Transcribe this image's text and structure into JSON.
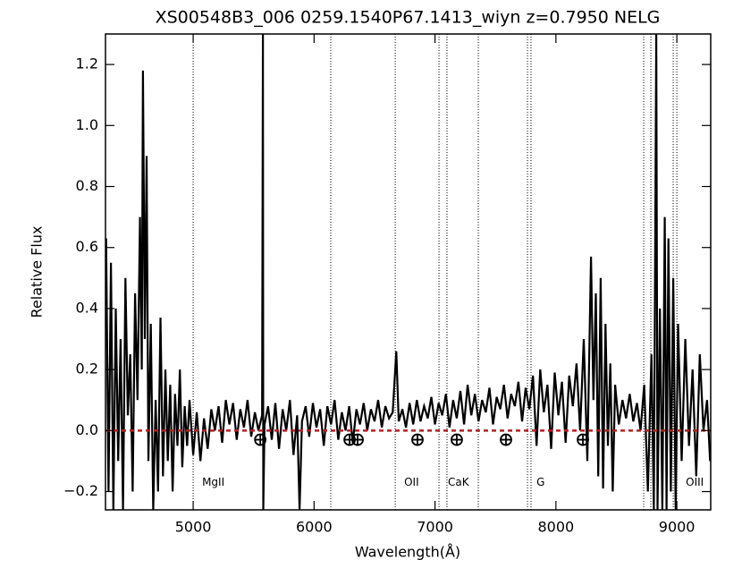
{
  "chart_data": {
    "type": "line",
    "title": "XS00548B3_006  0259.1540P67.1413_wiyn  z=0.7950   NELG",
    "x_label": "Wavelength(Å)",
    "y_label": "Relative Flux",
    "color": "#000000",
    "x": [
      4280,
      4300,
      4320,
      4340,
      4360,
      4380,
      4400,
      4420,
      4440,
      4460,
      4480,
      4500,
      4520,
      4540,
      4560,
      4575,
      4585,
      4600,
      4615,
      4630,
      4650,
      4670,
      4690,
      4710,
      4730,
      4750,
      4770,
      4790,
      4810,
      4830,
      4850,
      4870,
      4890,
      4910,
      4930,
      4950,
      4970,
      5000,
      5030,
      5060,
      5090,
      5120,
      5150,
      5180,
      5210,
      5240,
      5270,
      5300,
      5330,
      5360,
      5390,
      5420,
      5450,
      5480,
      5510,
      5540,
      5570,
      5577,
      5580,
      5590,
      5620,
      5650,
      5680,
      5710,
      5740,
      5770,
      5800,
      5830,
      5860,
      5880,
      5900,
      5930,
      5960,
      5990,
      6020,
      6050,
      6080,
      6110,
      6140,
      6170,
      6200,
      6230,
      6260,
      6290,
      6320,
      6350,
      6380,
      6410,
      6440,
      6470,
      6500,
      6530,
      6560,
      6590,
      6620,
      6650,
      6680,
      6700,
      6730,
      6760,
      6790,
      6820,
      6850,
      6880,
      6910,
      6940,
      6970,
      7000,
      7030,
      7060,
      7090,
      7120,
      7150,
      7180,
      7210,
      7240,
      7270,
      7300,
      7330,
      7360,
      7390,
      7420,
      7450,
      7480,
      7510,
      7540,
      7570,
      7600,
      7630,
      7660,
      7690,
      7720,
      7750,
      7780,
      7810,
      7840,
      7870,
      7900,
      7930,
      7960,
      7990,
      8020,
      8050,
      8080,
      8110,
      8140,
      8170,
      8200,
      8230,
      8260,
      8290,
      8310,
      8330,
      8350,
      8370,
      8390,
      8410,
      8430,
      8450,
      8470,
      8490,
      8520,
      8550,
      8580,
      8610,
      8640,
      8670,
      8700,
      8730,
      8760,
      8790,
      8810,
      8830,
      8840,
      8860,
      8880,
      8900,
      8915,
      8930,
      8950,
      8970,
      8990,
      9010,
      9040,
      9070,
      9100,
      9130,
      9160,
      9190,
      9220,
      9250,
      9275
    ],
    "values": [
      0.63,
      -0.2,
      0.55,
      -0.26,
      0.4,
      -0.1,
      0.3,
      -0.26,
      0.5,
      0.05,
      0.25,
      -0.2,
      0.45,
      0.1,
      0.7,
      0.2,
      1.18,
      0.3,
      0.9,
      -0.1,
      0.35,
      -0.26,
      0.1,
      -0.2,
      0.37,
      -0.15,
      0.2,
      -0.1,
      0.15,
      -0.2,
      0.12,
      -0.05,
      0.2,
      -0.12,
      0.08,
      -0.05,
      0.1,
      -0.08,
      0.06,
      -0.1,
      0.04,
      -0.06,
      0.07,
      0.0,
      0.08,
      -0.04,
      0.1,
      0.02,
      0.09,
      -0.03,
      0.07,
      0.01,
      0.1,
      -0.02,
      0.06,
      0.0,
      0.05,
      1.3,
      -0.26,
      0.02,
      0.08,
      -0.03,
      0.09,
      -0.06,
      0.07,
      0.0,
      0.1,
      -0.08,
      0.05,
      -0.26,
      0.03,
      0.08,
      -0.02,
      0.09,
      0.01,
      0.07,
      -0.05,
      0.08,
      0.02,
      0.1,
      -0.03,
      0.06,
      0.0,
      0.08,
      -0.04,
      0.07,
      0.02,
      0.09,
      0.0,
      0.07,
      0.03,
      0.1,
      0.01,
      0.08,
      0.04,
      0.06,
      0.26,
      0.03,
      0.07,
      0.01,
      0.09,
      0.02,
      0.1,
      0.03,
      0.08,
      0.04,
      0.11,
      0.02,
      0.09,
      0.05,
      0.12,
      0.01,
      0.1,
      0.04,
      0.13,
      0.02,
      0.15,
      0.05,
      0.12,
      0.03,
      0.1,
      0.06,
      0.14,
      0.02,
      0.11,
      0.07,
      0.15,
      0.04,
      0.12,
      0.08,
      0.16,
      0.03,
      0.14,
      0.07,
      0.18,
      -0.05,
      0.2,
      0.06,
      0.15,
      -0.06,
      0.19,
      0.05,
      0.16,
      -0.04,
      0.18,
      0.08,
      0.22,
      0.0,
      0.3,
      -0.1,
      0.57,
      0.1,
      0.45,
      -0.15,
      0.5,
      -0.19,
      0.35,
      -0.05,
      0.22,
      -0.2,
      0.15,
      0.02,
      0.1,
      0.04,
      0.12,
      0.03,
      0.09,
      0.0,
      0.15,
      -0.2,
      0.25,
      -0.26,
      1.3,
      -0.26,
      0.4,
      -0.26,
      0.7,
      -0.26,
      0.63,
      -0.2,
      0.5,
      -0.26,
      0.35,
      -0.1,
      0.3,
      -0.05,
      0.2,
      -0.15,
      0.25,
      0.0,
      0.1,
      -0.1
    ],
    "xlim": [
      4275,
      9280
    ],
    "ylim": [
      -0.26,
      1.3
    ],
    "xticks": [
      5000,
      6000,
      7000,
      8000,
      9000
    ],
    "yticks": [
      {
        "value": -0.2,
        "label": "−0.2"
      },
      {
        "value": 0,
        "label": "0.0"
      },
      {
        "value": 0.2,
        "label": "0.2"
      },
      {
        "value": 0.4,
        "label": "0.4"
      },
      {
        "value": 0.6,
        "label": "0.6"
      },
      {
        "value": 0.8,
        "label": "0.8"
      },
      {
        "value": 1.0,
        "label": "1.0"
      },
      {
        "value": 1.2,
        "label": "1.2"
      }
    ],
    "reference_line": {
      "value": 0,
      "color": "#b22222"
    },
    "features": [
      {
        "label": "MgII",
        "x": 5000
      },
      {
        "label": "OII",
        "x": 6671
      },
      {
        "label": "CaK",
        "x": 7033
      },
      {
        "label": "G",
        "x": 7765
      },
      {
        "label": "OIII",
        "x": 9000
      }
    ],
    "feature_lines": [
      6138,
      7099,
      7358,
      7794,
      8726,
      8785,
      8970
    ],
    "telluric": {
      "x": [
        5555,
        6294,
        6360,
        6855,
        7180,
        7587,
        8223
      ],
      "y": -0.03
    }
  }
}
